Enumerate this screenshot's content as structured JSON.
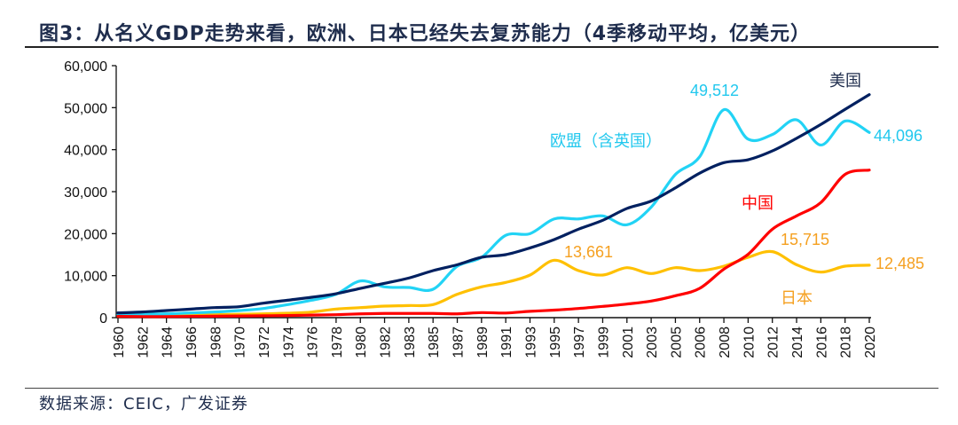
{
  "title": "图3：从名义GDP走势来看，欧洲、日本已经失去复苏能力（4季移动平均，亿美元）",
  "source": "数据来源：CEIC，广发证券",
  "chart_data": {
    "type": "line",
    "title": "图3：从名义GDP走势来看，欧洲、日本已经失去复苏能力（4季移动平均，亿美元）",
    "xlabel": "",
    "ylabel": "",
    "ylim": [
      0,
      60000
    ],
    "yticks": [
      "0",
      "10,000",
      "20,000",
      "30,000",
      "40,000",
      "50,000",
      "60,000"
    ],
    "ytick_values": [
      0,
      10000,
      20000,
      30000,
      40000,
      50000,
      60000
    ],
    "grid": false,
    "legend": "none (inline labels)",
    "categories": [
      "1960",
      "1962",
      "1964",
      "1966",
      "1968",
      "1970",
      "1972",
      "1974",
      "1976",
      "1978",
      "1980",
      "1982",
      "1983",
      "1985",
      "1987",
      "1989",
      "1991",
      "1993",
      "1995",
      "1997",
      "1999",
      "2001",
      "2003",
      "2005",
      "2006",
      "2008",
      "2010",
      "2012",
      "2014",
      "2016",
      "2018",
      "2020"
    ],
    "series": [
      {
        "name": "美国",
        "color": "#002060",
        "values": [
          1130,
          1340,
          1690,
          2040,
          2390,
          2600,
          3450,
          4150,
          4860,
          5700,
          6970,
          8170,
          9430,
          11200,
          12600,
          14370,
          15000,
          16600,
          18600,
          21060,
          23170,
          26000,
          27750,
          30900,
          34400,
          36900,
          37600,
          39700,
          42700,
          46000,
          49600,
          53100
        ]
      },
      {
        "name": "欧盟（含英国）",
        "color": "#22d3f5",
        "values": [
          700,
          850,
          900,
          1130,
          1340,
          1690,
          2180,
          3100,
          4150,
          5560,
          8730,
          7330,
          7180,
          6760,
          12250,
          14370,
          19600,
          20000,
          23500,
          23500,
          24230,
          22110,
          26300,
          34100,
          38300,
          49512,
          42500,
          43600,
          47100,
          41100,
          46800,
          44096
        ]
      },
      {
        "name": "中国",
        "color": "#ff0000",
        "values": [
          300,
          250,
          250,
          300,
          350,
          400,
          450,
          500,
          600,
          700,
          900,
          1000,
          1000,
          1000,
          900,
          1200,
          1100,
          1500,
          1800,
          2180,
          2680,
          3240,
          3940,
          5210,
          6970,
          11550,
          15070,
          21060,
          24230,
          27400,
          34100,
          35140
        ]
      },
      {
        "name": "日本",
        "color": "#ffc000",
        "values": [
          300,
          400,
          500,
          600,
          700,
          800,
          900,
          1050,
          1340,
          2040,
          2390,
          2740,
          2880,
          3100,
          5560,
          7330,
          8380,
          10140,
          13661,
          11200,
          10140,
          11900,
          10500,
          11900,
          11200,
          12250,
          14370,
          15715,
          12600,
          10840,
          12250,
          12485
        ]
      }
    ],
    "annotations": {
      "us_label": "美国",
      "eu_label": "欧盟（含英国）",
      "eu_peak": "49,512",
      "eu_last": "44,096",
      "cn_label": "中国",
      "jp_peak_2012": "15,715",
      "jp_peak_1995": "13,661",
      "jp_last": "12,485",
      "jp_label": "日本"
    },
    "annotation_color_japan": "#f5a020"
  }
}
